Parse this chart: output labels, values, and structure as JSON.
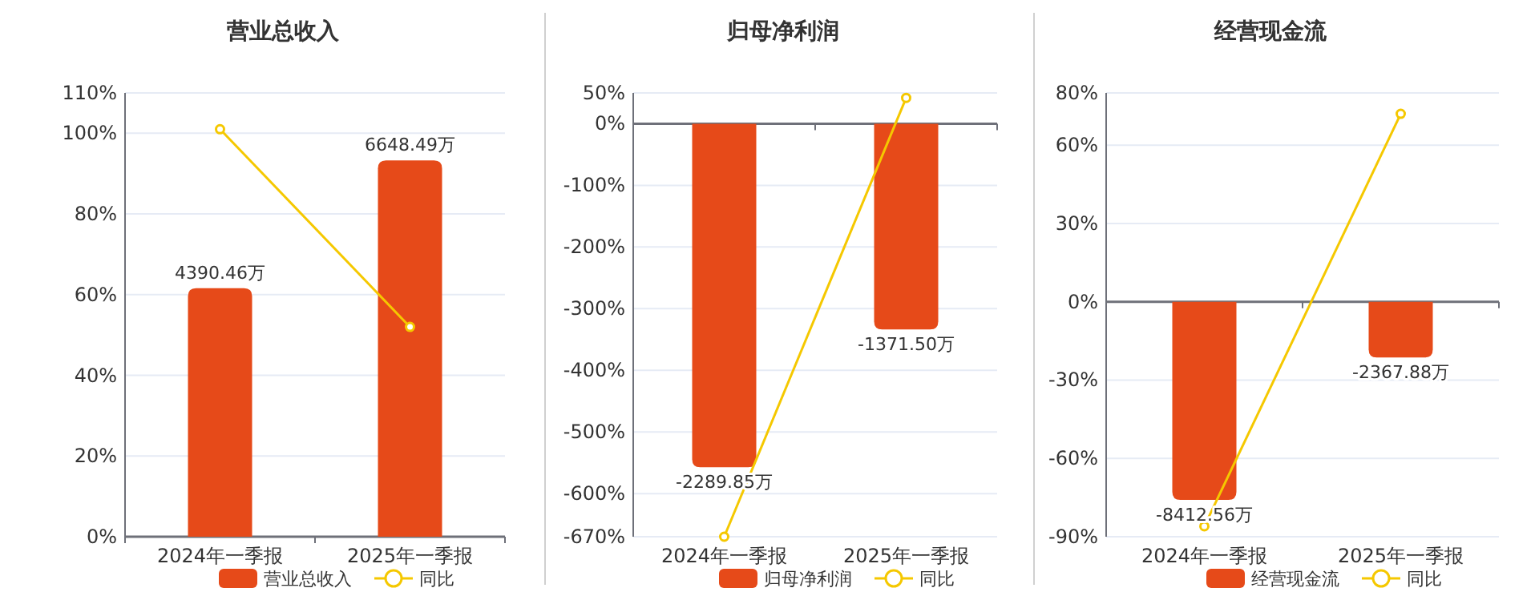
{
  "chart_data": [
    {
      "type": "bar",
      "title": "营业总收入",
      "categories": [
        "2024年一季报",
        "2025年一季报"
      ],
      "series": [
        {
          "name": "营业总收入",
          "axis": "y2",
          "color": "#e64a19",
          "values": [
            4390.46,
            6648.49
          ],
          "value_labels": [
            "4390.46万",
            "6648.49万"
          ]
        },
        {
          "name": "同比",
          "type": "line",
          "color": "#f5c800",
          "values": [
            101,
            52
          ],
          "marker": "circle"
        }
      ],
      "ylim": [
        0,
        110
      ],
      "yticks": [
        {
          "value": 0,
          "label": "0%"
        },
        {
          "value": 20,
          "label": "20%"
        },
        {
          "value": 40,
          "label": "40%"
        },
        {
          "value": 60,
          "label": "60%"
        },
        {
          "value": 80,
          "label": "80%"
        },
        {
          "value": 100,
          "label": "100%"
        },
        {
          "value": 110,
          "label": "110%"
        }
      ],
      "y2lim": [
        0,
        7840
      ],
      "grid": "y",
      "legend": "bottom"
    },
    {
      "type": "bar",
      "title": "归母净利润",
      "categories": [
        "2024年一季报",
        "2025年一季报"
      ],
      "series": [
        {
          "name": "归母净利润",
          "axis": "y2",
          "color": "#e64a19",
          "values": [
            -2289.85,
            -1371.5
          ],
          "value_labels": [
            "-2289.85万",
            "-1371.50万"
          ]
        },
        {
          "name": "同比",
          "type": "line",
          "color": "#f5c800",
          "values": [
            -670,
            42
          ],
          "marker": "circle"
        }
      ],
      "ylim": [
        -670,
        50
      ],
      "yticks": [
        {
          "value": -670,
          "label": "-670%"
        },
        {
          "value": -600,
          "label": "-600%"
        },
        {
          "value": -500,
          "label": "-500%"
        },
        {
          "value": -400,
          "label": "-400%"
        },
        {
          "value": -300,
          "label": "-300%"
        },
        {
          "value": -200,
          "label": "-200%"
        },
        {
          "value": -100,
          "label": "-100%"
        },
        {
          "value": 0,
          "label": "0%"
        },
        {
          "value": 50,
          "label": "50%"
        }
      ],
      "y2lim": [
        -2754,
        206
      ],
      "grid": "y",
      "legend": "bottom"
    },
    {
      "type": "bar",
      "title": "经营现金流",
      "categories": [
        "2024年一季报",
        "2025年一季报"
      ],
      "series": [
        {
          "name": "经营现金流",
          "axis": "y2",
          "color": "#e64a19",
          "values": [
            -8412.56,
            -2367.88
          ],
          "value_labels": [
            "-8412.56万",
            "-2367.88万"
          ]
        },
        {
          "name": "同比",
          "type": "line",
          "color": "#f5c800",
          "values": [
            -86,
            72
          ],
          "marker": "circle"
        }
      ],
      "ylim": [
        -90,
        80
      ],
      "yticks": [
        {
          "value": -90,
          "label": "-90%"
        },
        {
          "value": -60,
          "label": "-60%"
        },
        {
          "value": -30,
          "label": "-30%"
        },
        {
          "value": 0,
          "label": "0%"
        },
        {
          "value": 30,
          "label": "30%"
        },
        {
          "value": 60,
          "label": "60%"
        },
        {
          "value": 80,
          "label": "80%"
        }
      ],
      "y2lim": [
        -9974,
        8866
      ],
      "grid": "y",
      "legend": "bottom"
    }
  ]
}
